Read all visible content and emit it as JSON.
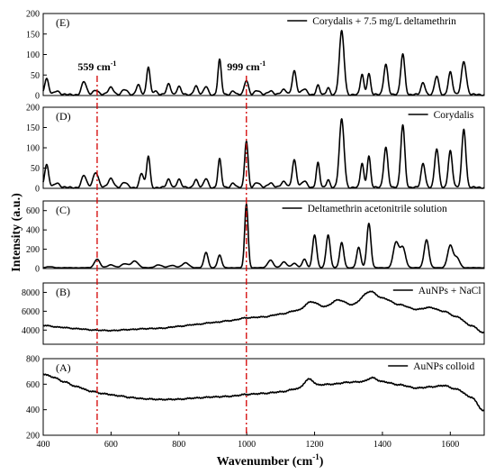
{
  "chart_data": {
    "type": "line",
    "xlabel": "Wavenumber (cm",
    "xlabel_sup": "-1",
    "xlabel_end": ")",
    "ylabel": "Intensity (a.u.)",
    "xlim": [
      400,
      1700
    ],
    "xticks": [
      400,
      600,
      800,
      1000,
      1200,
      1400,
      1600
    ],
    "markers": [
      {
        "x": 559,
        "label": "559 cm",
        "sup": "-1"
      },
      {
        "x": 999,
        "label": "999 cm",
        "sup": "-1"
      }
    ],
    "panels": [
      {
        "label": "(E)",
        "legend": "Corydalis + 7.5 mg/L deltamethrin",
        "ylim": [
          0,
          200
        ],
        "yticks": [
          0,
          50,
          100,
          150,
          200
        ],
        "baseline": 2,
        "peaks": [
          [
            410,
            38,
            6
          ],
          [
            440,
            10,
            8
          ],
          [
            520,
            32,
            7
          ],
          [
            555,
            12,
            8
          ],
          [
            600,
            18,
            8
          ],
          [
            640,
            12,
            8
          ],
          [
            680,
            25,
            6
          ],
          [
            710,
            68,
            5
          ],
          [
            730,
            10,
            6
          ],
          [
            770,
            26,
            6
          ],
          [
            800,
            20,
            6
          ],
          [
            850,
            22,
            6
          ],
          [
            880,
            20,
            6
          ],
          [
            920,
            85,
            5
          ],
          [
            960,
            10,
            6
          ],
          [
            999,
            35,
            6
          ],
          [
            1030,
            10,
            8
          ],
          [
            1070,
            10,
            8
          ],
          [
            1110,
            12,
            8
          ],
          [
            1140,
            58,
            6
          ],
          [
            1170,
            14,
            8
          ],
          [
            1210,
            22,
            5
          ],
          [
            1240,
            18,
            5
          ],
          [
            1280,
            155,
            7
          ],
          [
            1340,
            50,
            5
          ],
          [
            1360,
            52,
            5
          ],
          [
            1410,
            75,
            6
          ],
          [
            1460,
            100,
            6
          ],
          [
            1520,
            30,
            6
          ],
          [
            1560,
            45,
            6
          ],
          [
            1600,
            55,
            6
          ],
          [
            1640,
            82,
            7
          ]
        ]
      },
      {
        "label": "(D)",
        "legend": "Corydalis",
        "ylim": [
          0,
          200
        ],
        "yticks": [
          0,
          50,
          100,
          150,
          200
        ],
        "baseline": 2,
        "peaks": [
          [
            410,
            55,
            6
          ],
          [
            440,
            12,
            8
          ],
          [
            520,
            30,
            7
          ],
          [
            555,
            38,
            8
          ],
          [
            600,
            22,
            8
          ],
          [
            640,
            12,
            8
          ],
          [
            690,
            35,
            6
          ],
          [
            710,
            78,
            5
          ],
          [
            770,
            20,
            6
          ],
          [
            800,
            20,
            6
          ],
          [
            850,
            20,
            6
          ],
          [
            880,
            22,
            6
          ],
          [
            920,
            70,
            5
          ],
          [
            960,
            12,
            6
          ],
          [
            999,
            115,
            5
          ],
          [
            1030,
            12,
            8
          ],
          [
            1070,
            12,
            8
          ],
          [
            1110,
            14,
            8
          ],
          [
            1140,
            68,
            6
          ],
          [
            1170,
            16,
            8
          ],
          [
            1210,
            60,
            5
          ],
          [
            1240,
            20,
            5
          ],
          [
            1280,
            168,
            7
          ],
          [
            1340,
            60,
            5
          ],
          [
            1360,
            78,
            5
          ],
          [
            1410,
            100,
            6
          ],
          [
            1460,
            155,
            6
          ],
          [
            1520,
            60,
            6
          ],
          [
            1560,
            95,
            6
          ],
          [
            1600,
            90,
            6
          ],
          [
            1640,
            145,
            6
          ]
        ]
      },
      {
        "label": "(C)",
        "legend": "Deltamethrin acetonitrile solution",
        "ylim": [
          0,
          700
        ],
        "yticks": [
          0,
          200,
          400,
          600
        ],
        "baseline": 8,
        "peaks": [
          [
            420,
            10,
            10
          ],
          [
            559,
            90,
            8
          ],
          [
            600,
            30,
            10
          ],
          [
            640,
            40,
            10
          ],
          [
            670,
            70,
            10
          ],
          [
            740,
            30,
            10
          ],
          [
            780,
            25,
            10
          ],
          [
            820,
            50,
            10
          ],
          [
            880,
            160,
            6
          ],
          [
            920,
            130,
            6
          ],
          [
            999,
            660,
            5
          ],
          [
            1070,
            80,
            8
          ],
          [
            1110,
            60,
            8
          ],
          [
            1140,
            45,
            8
          ],
          [
            1170,
            90,
            6
          ],
          [
            1200,
            340,
            6
          ],
          [
            1240,
            340,
            6
          ],
          [
            1280,
            260,
            6
          ],
          [
            1330,
            210,
            6
          ],
          [
            1360,
            460,
            6
          ],
          [
            1440,
            260,
            8
          ],
          [
            1460,
            210,
            8
          ],
          [
            1530,
            290,
            7
          ],
          [
            1600,
            230,
            8
          ],
          [
            1620,
            100,
            8
          ]
        ]
      },
      {
        "label": "(B)",
        "legend": "AuNPs + NaCl",
        "ylim": [
          2500,
          9000
        ],
        "yticks": [
          4000,
          6000,
          8000
        ],
        "baseline": 0,
        "curve": [
          [
            400,
            4500
          ],
          [
            450,
            4300
          ],
          [
            500,
            4150
          ],
          [
            550,
            4000
          ],
          [
            600,
            3950
          ],
          [
            650,
            4050
          ],
          [
            700,
            4150
          ],
          [
            750,
            4200
          ],
          [
            800,
            4400
          ],
          [
            850,
            4600
          ],
          [
            900,
            4800
          ],
          [
            950,
            5000
          ],
          [
            999,
            5300
          ],
          [
            1050,
            5400
          ],
          [
            1100,
            5700
          ],
          [
            1150,
            6100
          ],
          [
            1190,
            7000
          ],
          [
            1230,
            6500
          ],
          [
            1270,
            7200
          ],
          [
            1310,
            6700
          ],
          [
            1365,
            8100
          ],
          [
            1400,
            7400
          ],
          [
            1450,
            6700
          ],
          [
            1500,
            6200
          ],
          [
            1540,
            6400
          ],
          [
            1580,
            6000
          ],
          [
            1620,
            5400
          ],
          [
            1660,
            4500
          ],
          [
            1700,
            3700
          ]
        ]
      },
      {
        "label": "(A)",
        "legend": "AuNPs colloid",
        "ylim": [
          200,
          800
        ],
        "yticks": [
          200,
          400,
          600,
          800
        ],
        "baseline": 0,
        "curve": [
          [
            400,
            680
          ],
          [
            430,
            655
          ],
          [
            460,
            620
          ],
          [
            500,
            580
          ],
          [
            540,
            545
          ],
          [
            580,
            525
          ],
          [
            620,
            510
          ],
          [
            660,
            495
          ],
          [
            700,
            485
          ],
          [
            750,
            480
          ],
          [
            800,
            482
          ],
          [
            850,
            492
          ],
          [
            900,
            500
          ],
          [
            950,
            505
          ],
          [
            999,
            520
          ],
          [
            1050,
            528
          ],
          [
            1100,
            540
          ],
          [
            1150,
            565
          ],
          [
            1185,
            640
          ],
          [
            1210,
            595
          ],
          [
            1250,
            600
          ],
          [
            1300,
            615
          ],
          [
            1340,
            620
          ],
          [
            1370,
            650
          ],
          [
            1400,
            620
          ],
          [
            1450,
            595
          ],
          [
            1500,
            570
          ],
          [
            1550,
            580
          ],
          [
            1580,
            590
          ],
          [
            1620,
            560
          ],
          [
            1660,
            500
          ],
          [
            1700,
            390
          ]
        ]
      }
    ]
  }
}
